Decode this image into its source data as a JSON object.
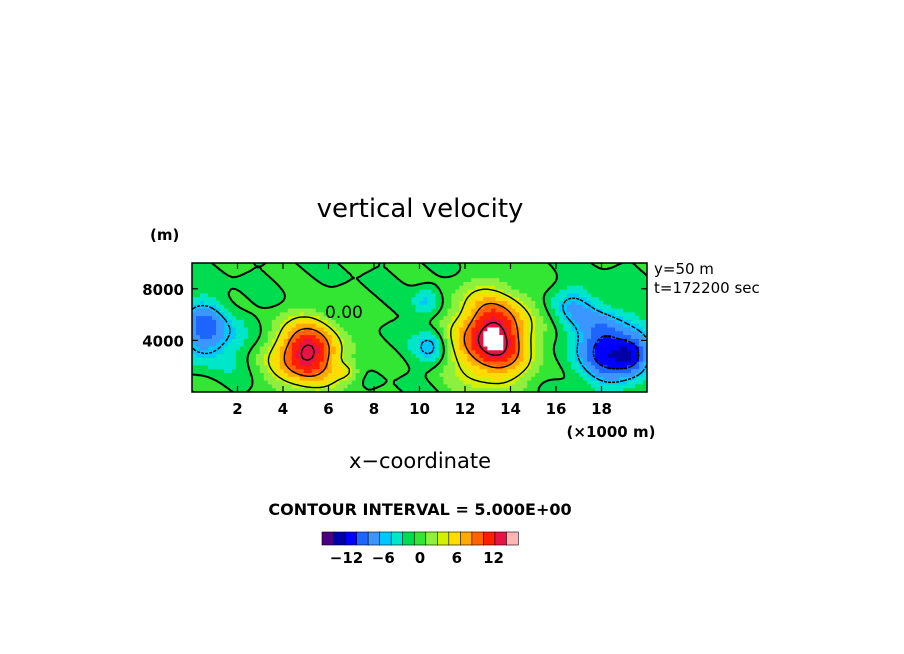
{
  "chart_data": {
    "type": "contour",
    "title": "vertical velocity",
    "xlabel": "x−coordinate",
    "xunit": "(×1000 m)",
    "yunit": "(m)",
    "xlim": [
      0,
      20
    ],
    "ylim": [
      0,
      10000
    ],
    "x_ticks": [
      2,
      4,
      6,
      8,
      10,
      12,
      14,
      16,
      18
    ],
    "x_tick_labels": [
      "2",
      "4",
      "6",
      "8",
      "10",
      "12",
      "14",
      "16",
      "18"
    ],
    "y_ticks": [
      4000,
      8000
    ],
    "y_tick_labels": [
      "4000",
      "8000"
    ],
    "annotations": [
      "y=50 m",
      "t=172200 sec"
    ],
    "contour_interval_text": "CONTOUR INTERVAL = 5.000E+00",
    "contour_label": "0.00",
    "colorbar": {
      "levels": [
        -16,
        -14,
        -12,
        -10,
        -8,
        -6,
        -4,
        -2,
        0,
        2,
        4,
        6,
        8,
        10,
        12,
        14,
        16
      ],
      "colors": [
        "#4b0082",
        "#0000a8",
        "#0000ff",
        "#1e64ff",
        "#3c96ff",
        "#00c8ff",
        "#00e6c8",
        "#00dc50",
        "#33e633",
        "#8cf03c",
        "#d2f000",
        "#ffdc00",
        "#ffaa00",
        "#ff6400",
        "#ff1e00",
        "#e61446",
        "#ffb4b4"
      ],
      "tick_values": [
        -12,
        -6,
        0,
        6,
        12
      ],
      "tick_labels": [
        "−12",
        "−6",
        "0",
        "6",
        "12"
      ]
    },
    "features": [
      {
        "kind": "updraft",
        "x": 5.0,
        "y": 3000,
        "peak": 16,
        "rx": 1.5,
        "ry": 2500
      },
      {
        "kind": "updraft",
        "x": 13.2,
        "y": 4200,
        "peak": 17,
        "rx": 1.7,
        "ry": 3300
      },
      {
        "kind": "updraft",
        "x": 6.8,
        "y": 1600,
        "peak": 4,
        "rx": 0.6,
        "ry": 700
      },
      {
        "kind": "downdraft",
        "x": 0.4,
        "y": 4800,
        "peak": -9,
        "rx": 1.0,
        "ry": 2200
      },
      {
        "kind": "downdraft",
        "x": 10.5,
        "y": 3600,
        "peak": -7,
        "rx": 0.7,
        "ry": 1400
      },
      {
        "kind": "downdraft",
        "x": 10.3,
        "y": 7000,
        "peak": -5,
        "rx": 0.6,
        "ry": 1200
      },
      {
        "kind": "downdraft",
        "x": 18.2,
        "y": 3400,
        "peak": -11,
        "rx": 1.4,
        "ry": 2800
      },
      {
        "kind": "downdraft",
        "x": 19.4,
        "y": 2800,
        "peak": -8,
        "rx": 0.8,
        "ry": 1500
      },
      {
        "kind": "downdraft",
        "x": 16.6,
        "y": 6500,
        "peak": -5,
        "rx": 1.0,
        "ry": 1800
      },
      {
        "kind": "downdraft",
        "x": 2.0,
        "y": 4200,
        "peak": -3,
        "rx": 1.3,
        "ry": 2200
      }
    ]
  }
}
